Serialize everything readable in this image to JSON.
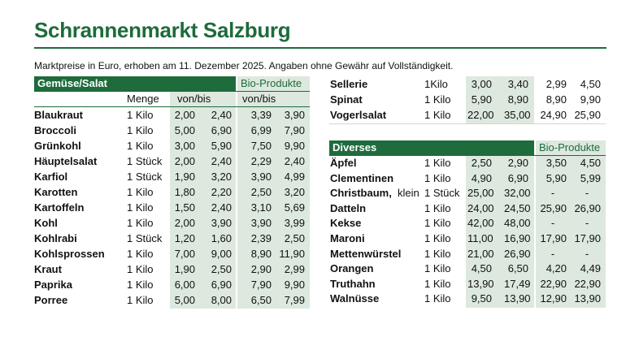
{
  "title": "Schrannenmarkt Salzburg",
  "subtitle": "Marktpreise in Euro, erhoben am 11. Dezember 2025. Angaben ohne Gewähr auf Vollständigkeit.",
  "left": {
    "section_title": "Gemüse/Salat",
    "bio_label": "Bio-Produkte",
    "col_menge": "Menge",
    "col_vonbis": "von/bis",
    "col_bio_vonbis": "von/bis",
    "rows": [
      {
        "name": "Blaukraut",
        "menge": "1 Kilo",
        "von": "2,00",
        "bis": "2,40",
        "bio_von": "3,39",
        "bio_bis": "3,90"
      },
      {
        "name": "Broccoli",
        "menge": "1 Kilo",
        "von": "5,00",
        "bis": "6,90",
        "bio_von": "6,99",
        "bio_bis": "7,90"
      },
      {
        "name": "Grünkohl",
        "menge": "1 Kilo",
        "von": "3,00",
        "bis": "5,90",
        "bio_von": "7,50",
        "bio_bis": "9,90"
      },
      {
        "name": "Häuptelsalat",
        "menge": "1 Stück",
        "von": "2,00",
        "bis": "2,40",
        "bio_von": "2,29",
        "bio_bis": "2,40"
      },
      {
        "name": "Karfiol",
        "menge": "1 Stück",
        "von": "1,90",
        "bis": "3,20",
        "bio_von": "3,90",
        "bio_bis": "4,99"
      },
      {
        "name": "Karotten",
        "menge": "1 Kilo",
        "von": "1,80",
        "bis": "2,20",
        "bio_von": "2,50",
        "bio_bis": "3,20"
      },
      {
        "name": "Kartoffeln",
        "menge": "1 Kilo",
        "von": "1,50",
        "bis": "2,40",
        "bio_von": "3,10",
        "bio_bis": "5,69"
      },
      {
        "name": "Kohl",
        "menge": "1 Kilo",
        "von": "2,00",
        "bis": "3,90",
        "bio_von": "3,90",
        "bio_bis": "3,99"
      },
      {
        "name": "Kohlrabi",
        "menge": "1 Stück",
        "von": "1,20",
        "bis": "1,60",
        "bio_von": "2,39",
        "bio_bis": "2,50"
      },
      {
        "name": "Kohlsprossen",
        "menge": "1 Kilo",
        "von": "7,00",
        "bis": "9,00",
        "bio_von": "8,90",
        "bio_bis": "11,90"
      },
      {
        "name": "Kraut",
        "menge": "1 Kilo",
        "von": "1,90",
        "bis": "2,50",
        "bio_von": "2,90",
        "bio_bis": "2,99"
      },
      {
        "name": "Paprika",
        "menge": "1 Kilo",
        "von": "6,00",
        "bis": "6,90",
        "bio_von": "7,90",
        "bio_bis": "9,90"
      },
      {
        "name": "Porree",
        "menge": "1 Kilo",
        "von": "5,00",
        "bis": "8,00",
        "bio_von": "6,50",
        "bio_bis": "7,99"
      }
    ]
  },
  "right_top": {
    "rows": [
      {
        "name": "Sellerie",
        "menge": "1Kilo",
        "von": "3,00",
        "bis": "3,40",
        "bio_von": "2,99",
        "bio_bis": "4,50"
      },
      {
        "name": "Spinat",
        "menge": "1 Kilo",
        "von": "5,90",
        "bis": "8,90",
        "bio_von": "8,90",
        "bio_bis": "9,90"
      },
      {
        "name": "Vogerlsalat",
        "menge": "1 Kilo",
        "von": "22,00",
        "bis": "35,00",
        "bio_von": "24,90",
        "bio_bis": "25,90"
      }
    ]
  },
  "right_bottom": {
    "section_title": "Diverses",
    "bio_label": "Bio-Produkte",
    "rows": [
      {
        "name": "Äpfel",
        "menge": "1 Kilo",
        "von": "2,50",
        "bis": "2,90",
        "bio_von": "3,50",
        "bio_bis": "4,50"
      },
      {
        "name": "Clementinen",
        "menge": "1 Kilo",
        "von": "4,90",
        "bis": "6,90",
        "bio_von": "5,90",
        "bio_bis": "5,99"
      },
      {
        "name": "Christbaum,",
        "name2": "klein",
        "menge": "1 Stück",
        "von": "25,00",
        "bis": "32,00",
        "bio_von": "-",
        "bio_bis": "-"
      },
      {
        "name": "Datteln",
        "menge": "1 Kilo",
        "von": "24,00",
        "bis": "24,50",
        "bio_von": "25,90",
        "bio_bis": "26,90"
      },
      {
        "name": "Kekse",
        "menge": "1 Kilo",
        "von": "42,00",
        "bis": "48,00",
        "bio_von": "-",
        "bio_bis": "-"
      },
      {
        "name": "Maroni",
        "menge": "1 Kilo",
        "von": "11,00",
        "bis": "16,90",
        "bio_von": "17,90",
        "bio_bis": "17,90"
      },
      {
        "name": "Mettenwürstel",
        "menge": "1 Kilo",
        "von": "21,00",
        "bis": "26,90",
        "bio_von": "-",
        "bio_bis": "-"
      },
      {
        "name": "Orangen",
        "menge": "1 Kilo",
        "von": "4,50",
        "bis": "6,50",
        "bio_von": "4,20",
        "bio_bis": "4,49"
      },
      {
        "name": "Truthahn",
        "menge": "1 Kilo",
        "von": "13,90",
        "bis": "17,49",
        "bio_von": "22,90",
        "bio_bis": "22,90"
      },
      {
        "name": "Walnüsse",
        "menge": "1 Kilo",
        "von": "9,50",
        "bis": "13,90",
        "bio_von": "12,90",
        "bio_bis": "13,90"
      }
    ]
  }
}
